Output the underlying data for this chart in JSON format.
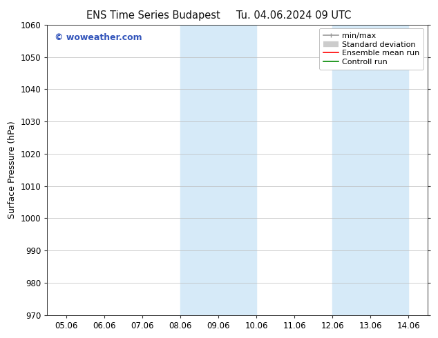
{
  "title_left": "ENS Time Series Budapest",
  "title_right": "Tu. 04.06.2024 09 UTC",
  "ylabel": "Surface Pressure (hPa)",
  "ylim": [
    970,
    1060
  ],
  "yticks": [
    970,
    980,
    990,
    1000,
    1010,
    1020,
    1030,
    1040,
    1050,
    1060
  ],
  "x_labels": [
    "05.06",
    "06.06",
    "07.06",
    "08.06",
    "09.06",
    "10.06",
    "11.06",
    "12.06",
    "13.06",
    "14.06"
  ],
  "x_values": [
    0,
    1,
    2,
    3,
    4,
    5,
    6,
    7,
    8,
    9
  ],
  "xlim": [
    -0.5,
    9.5
  ],
  "shaded_regions": [
    {
      "x_start": 3.0,
      "x_end": 5.0,
      "color": "#d6eaf8"
    },
    {
      "x_start": 7.0,
      "x_end": 9.0,
      "color": "#d6eaf8"
    }
  ],
  "watermark": "© woweather.com",
  "watermark_color": "#3355bb",
  "legend_items": [
    {
      "label": "min/max",
      "color": "#999999",
      "lw": 1.2
    },
    {
      "label": "Standard deviation",
      "color": "#cccccc",
      "lw": 6
    },
    {
      "label": "Ensemble mean run",
      "color": "#ff0000",
      "lw": 1.2
    },
    {
      "label": "Controll run",
      "color": "#008800",
      "lw": 1.2
    }
  ],
  "background_color": "#ffffff",
  "plot_bg_color": "#ffffff",
  "grid_color": "#bbbbbb",
  "spine_color": "#333333",
  "title_fontsize": 10.5,
  "label_fontsize": 9,
  "tick_fontsize": 8.5,
  "legend_fontsize": 8
}
